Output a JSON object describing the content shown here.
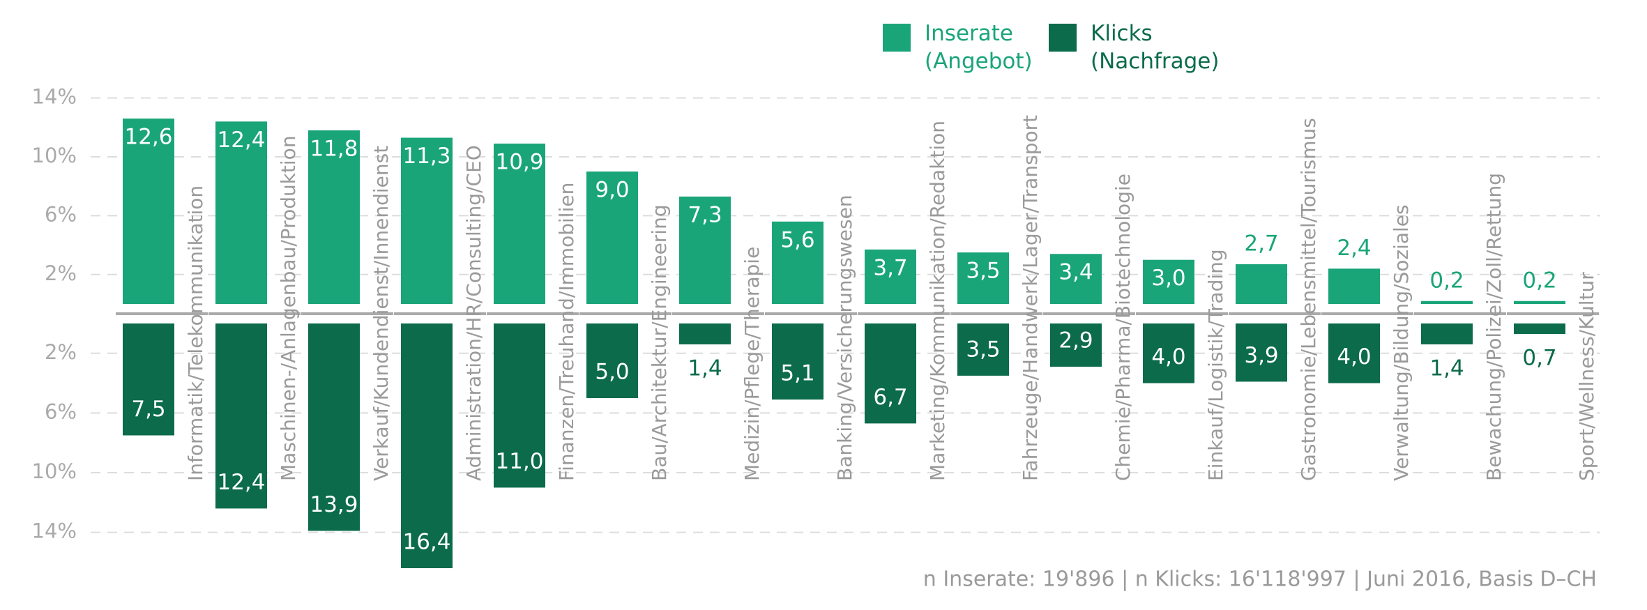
{
  "chart_data": {
    "type": "diverging-bar",
    "categories": [
      "Informatik/Telekommunikation",
      "Maschinen-/Anlagenbau/Produktion",
      "Verkauf/Kundendienst/Innendienst",
      "Administration/HR/Consulting/CEO",
      "Finanzen/Treuhand/Immobilien",
      "Bau/Architektur/Engineering",
      "Medizin/Pflege/Therapie",
      "Banking/Versicherungswesen",
      "Marketing/Kommunikation/Redaktion",
      "Fahrzeuge/Handwerk/Lager/Transport",
      "Chemie/Pharma/Biotechnologie",
      "Einkauf/Logistik/Trading",
      "Gastronomie/Lebensmittel/Tourismus",
      "Verwaltung/Bildung/Soziales",
      "Bewachung/Polizei/Zoll/Rettung",
      "Sport/Wellness/Kultur"
    ],
    "series": [
      {
        "name": "Inserate (Angebot)",
        "color": "#1aa579",
        "values": [
          12.6,
          12.4,
          11.8,
          11.3,
          10.9,
          9.0,
          7.3,
          5.6,
          3.7,
          3.5,
          3.4,
          3.0,
          2.7,
          2.4,
          0.2,
          0.2
        ],
        "value_labels": [
          "12,6",
          "12,4",
          "11,8",
          "11,3",
          "10,9",
          "9,0",
          "7,3",
          "5,6",
          "3,7",
          "3,5",
          "3,4",
          "3,0",
          "2,7",
          "2,4",
          "0,2",
          "0,2"
        ]
      },
      {
        "name": "Klicks (Nachfrage)",
        "color": "#0b6b4b",
        "axis": "y2",
        "values": [
          7.5,
          12.4,
          13.9,
          16.4,
          11.0,
          5.0,
          1.4,
          5.1,
          6.7,
          3.5,
          2.9,
          4.0,
          3.9,
          4.0,
          1.4,
          0.7
        ],
        "value_labels": [
          "7,5",
          "12,4",
          "13,9",
          "16,4",
          "11,0",
          "5,0",
          "1,4",
          "5,1",
          "6,7",
          "3,5",
          "2,9",
          "4,0",
          "3,9",
          "4,0",
          "1,4",
          "0,7"
        ]
      }
    ],
    "ylim": [
      0,
      14.5
    ],
    "yticks": [
      {
        "value": 14,
        "label": "14%"
      },
      {
        "value": 10,
        "label": "10%"
      },
      {
        "value": 6,
        "label": "6%"
      },
      {
        "value": 2,
        "label": "2%"
      }
    ],
    "y2lim": [
      0,
      16.4
    ],
    "y2ticks": [
      {
        "value": 2,
        "label": "2%"
      },
      {
        "value": 6,
        "label": "6%"
      },
      {
        "value": 10,
        "label": "10%"
      },
      {
        "value": 14,
        "label": "14%"
      }
    ],
    "grid": true,
    "note": "n Inserate: 19'896 | n Klicks: 16'118'997 | Juni 2016, Basis D–CH"
  }
}
